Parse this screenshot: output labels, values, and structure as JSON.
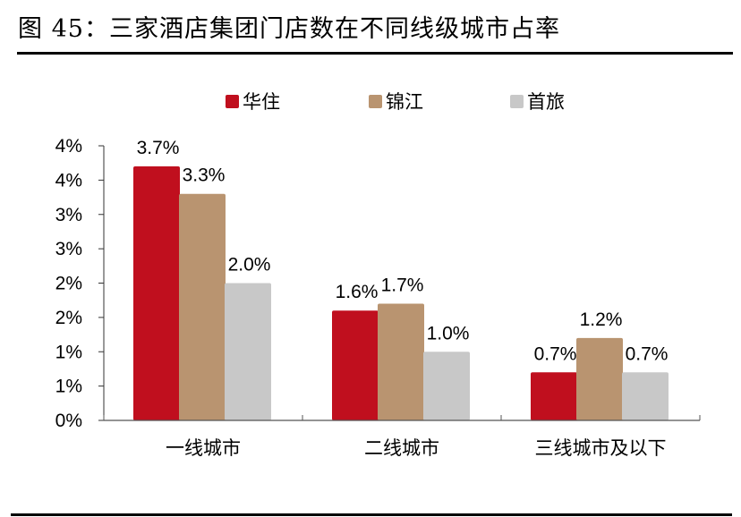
{
  "figure": {
    "title_prefix": "图 45",
    "title_sep": "：",
    "title_text": "三家酒店集团门店数在不同线级城市占率"
  },
  "legend": [
    {
      "label": "华住",
      "color": "#C00F1E"
    },
    {
      "label": "锦江",
      "color": "#B99470"
    },
    {
      "label": "首旅",
      "color": "#C8C8C8"
    }
  ],
  "chart_data": {
    "type": "bar",
    "title": "三家酒店集团门店数在不同线级城市占率",
    "xlabel": "",
    "ylabel": "",
    "categories": [
      "一线城市",
      "二线城市",
      "三线城市及以下"
    ],
    "series": [
      {
        "name": "华住",
        "color": "#C00F1E",
        "values": [
          3.7,
          1.6,
          0.7
        ],
        "labels": [
          "3.7%",
          "1.6%",
          "0.7%"
        ]
      },
      {
        "name": "锦江",
        "color": "#B99470",
        "values": [
          3.3,
          1.7,
          1.2
        ],
        "labels": [
          "3.3%",
          "1.7%",
          "1.2%"
        ]
      },
      {
        "name": "首旅",
        "color": "#C8C8C8",
        "values": [
          2.0,
          1.0,
          0.7
        ],
        "labels": [
          "2.0%",
          "1.0%",
          "0.7%"
        ]
      }
    ],
    "ylim": [
      0,
      4
    ],
    "ytick_values": [
      0,
      0.5,
      1,
      1.5,
      2,
      2.5,
      3,
      3.5,
      4
    ],
    "ytick_labels": [
      "0%",
      "1%",
      "1%",
      "2%",
      "2%",
      "3%",
      "3%",
      "4%",
      "4%"
    ],
    "grid": false,
    "legend_position": "top"
  }
}
